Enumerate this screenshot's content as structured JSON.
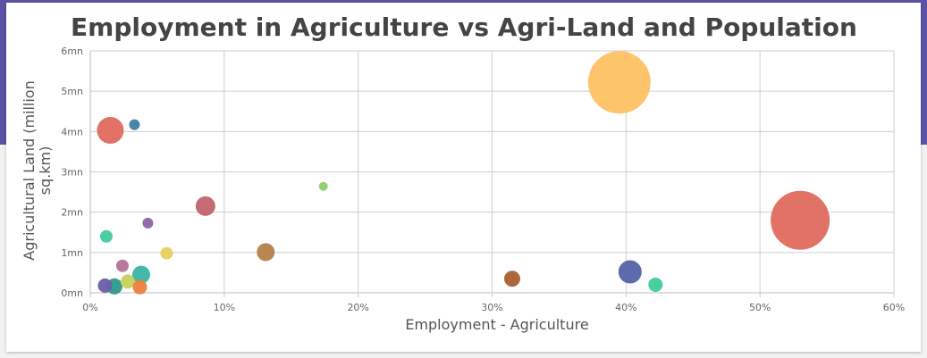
{
  "chart_data": {
    "type": "bubble",
    "title": "Employment in Agriculture vs Agri-Land and Population",
    "xlabel": "Employment - Agriculture",
    "ylabel_lines": [
      "Agricultural Land (million",
      "sq.km)"
    ],
    "x_ticks": [
      "0%",
      "10%",
      "20%",
      "30%",
      "40%",
      "50%",
      "60%"
    ],
    "y_ticks": [
      "0mn",
      "1mn",
      "2mn",
      "3mn",
      "4mn",
      "5mn",
      "6mn"
    ],
    "xlim": [
      0,
      60
    ],
    "ylim": [
      0,
      6
    ],
    "grid": true,
    "points": [
      {
        "x": 1.5,
        "y": 4.03,
        "size": 15,
        "color": "#e06a5e"
      },
      {
        "x": 3.3,
        "y": 4.17,
        "size": 6,
        "color": "#3d7fa3"
      },
      {
        "x": 39.5,
        "y": 5.22,
        "size": 35,
        "color": "#fdc163"
      },
      {
        "x": 53.0,
        "y": 1.8,
        "size": 33,
        "color": "#e06a5e"
      },
      {
        "x": 8.6,
        "y": 2.15,
        "size": 11,
        "color": "#c2636e"
      },
      {
        "x": 17.4,
        "y": 2.64,
        "size": 5,
        "color": "#8bd072"
      },
      {
        "x": 4.3,
        "y": 1.73,
        "size": 6,
        "color": "#8c64a5"
      },
      {
        "x": 1.2,
        "y": 1.4,
        "size": 7,
        "color": "#3fcb9b"
      },
      {
        "x": 5.7,
        "y": 0.98,
        "size": 7,
        "color": "#e8d05d"
      },
      {
        "x": 13.1,
        "y": 1.01,
        "size": 10,
        "color": "#b5814b"
      },
      {
        "x": 2.4,
        "y": 0.67,
        "size": 7,
        "color": "#b57295"
      },
      {
        "x": 3.8,
        "y": 0.45,
        "size": 10,
        "color": "#3bb5a3"
      },
      {
        "x": 2.8,
        "y": 0.28,
        "size": 8,
        "color": "#c7d15b"
      },
      {
        "x": 1.1,
        "y": 0.18,
        "size": 8,
        "color": "#6a5fa8"
      },
      {
        "x": 1.8,
        "y": 0.16,
        "size": 9,
        "color": "#2d9a8a"
      },
      {
        "x": 3.7,
        "y": 0.14,
        "size": 8,
        "color": "#ec7f3e"
      },
      {
        "x": 31.5,
        "y": 0.35,
        "size": 9,
        "color": "#a85f2e"
      },
      {
        "x": 40.3,
        "y": 0.52,
        "size": 13,
        "color": "#5363a6"
      },
      {
        "x": 42.2,
        "y": 0.2,
        "size": 8,
        "color": "#3fcb9b"
      }
    ]
  }
}
